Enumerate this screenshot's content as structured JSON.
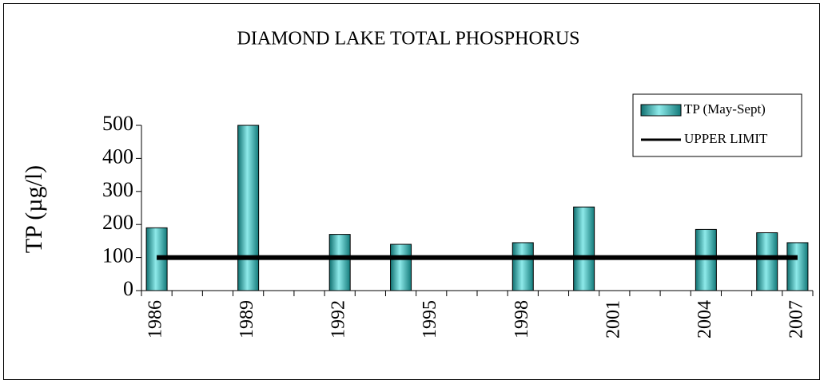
{
  "chart_data": {
    "type": "bar",
    "title": "DIAMOND LAKE TOTAL PHOSPHORUS",
    "y_label": "TP (µg/l)",
    "categories": [
      "1986",
      null,
      null,
      "1989",
      null,
      null,
      "1992",
      null,
      null,
      "1995",
      null,
      null,
      "1998",
      null,
      null,
      "2001",
      null,
      null,
      "2004",
      null,
      null,
      "2007"
    ],
    "series": [
      {
        "name": "TP (May-Sept)",
        "type": "bar",
        "color": "#33cccc",
        "values": [
          190,
          null,
          null,
          500,
          null,
          null,
          170,
          null,
          140,
          null,
          null,
          null,
          145,
          null,
          253,
          null,
          null,
          null,
          185,
          null,
          175,
          145
        ]
      },
      {
        "name": "UPPER LIMIT",
        "type": "line",
        "color": "#000000",
        "values": [
          100,
          100,
          100,
          100,
          100,
          100,
          100,
          100,
          100,
          100,
          100,
          100,
          100,
          100,
          100,
          100,
          100,
          100,
          100,
          100,
          100,
          100
        ]
      }
    ],
    "ylim": [
      0,
      500
    ],
    "yticks": [
      0,
      100,
      200,
      300,
      400,
      500
    ],
    "grid": false,
    "legend": "upper right"
  }
}
